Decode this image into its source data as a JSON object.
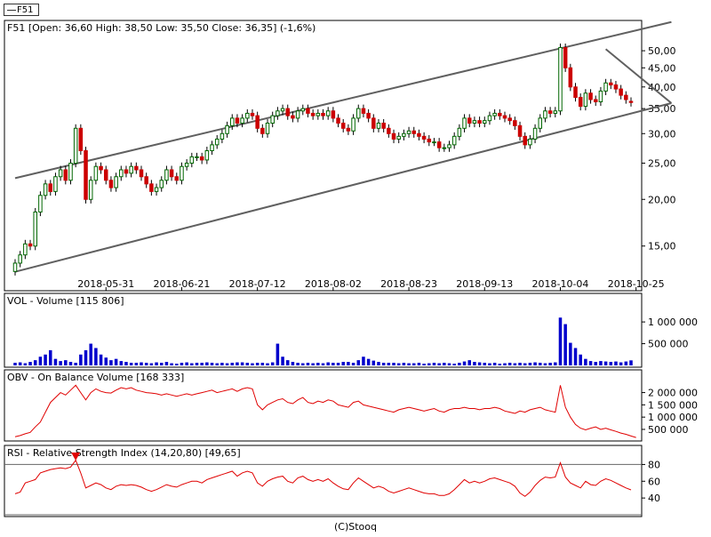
{
  "legend": {
    "label": "F51"
  },
  "credit": "(C)Stooq",
  "colors": {
    "up": "#ffffff",
    "down": "#cc0000",
    "volume": "#0000cc",
    "indicator": "#e00000",
    "channel": "#606060",
    "grid": "#000000"
  },
  "chart_data": [
    {
      "type": "candlestick",
      "title": "F51 [Open: 36,60  High: 38,50  Low: 35,50  Close: 36,35] (-1,6%)",
      "y_scale": "log",
      "ylim": [
        12.5,
        58
      ],
      "y_ticks": [
        {
          "value": 15,
          "label": "15,00"
        },
        {
          "value": 20,
          "label": "20,00"
        },
        {
          "value": 25,
          "label": "25,00"
        },
        {
          "value": 30,
          "label": "30,00"
        },
        {
          "value": 35,
          "label": "35,00"
        },
        {
          "value": 40,
          "label": "40,00"
        },
        {
          "value": 45,
          "label": "45,00"
        },
        {
          "value": 50,
          "label": "50,00"
        }
      ],
      "x_ticks": [
        "2018-05-31",
        "2018-06-21",
        "2018-07-12",
        "2018-08-02",
        "2018-08-23",
        "2018-09-13",
        "2018-10-04",
        "2018-10-25"
      ],
      "x_tick_index": [
        18,
        33,
        48,
        63,
        78,
        93,
        108,
        123
      ],
      "closes": [
        13.5,
        14.2,
        15.2,
        15.0,
        18.5,
        20.5,
        22.0,
        21.0,
        23.0,
        24.0,
        22.5,
        25.0,
        31.0,
        27.0,
        20.0,
        22.5,
        24.5,
        24.0,
        22.5,
        21.5,
        23.0,
        24.0,
        23.5,
        24.5,
        24.0,
        23.0,
        22.0,
        21.0,
        21.5,
        22.5,
        24.0,
        23.0,
        22.5,
        24.5,
        25.0,
        26.0,
        26.0,
        25.5,
        27.0,
        28.0,
        29.0,
        30.0,
        31.5,
        33.0,
        32.0,
        33.0,
        34.0,
        33.5,
        31.0,
        30.0,
        32.0,
        33.5,
        34.5,
        35.0,
        33.5,
        33.0,
        34.5,
        35.0,
        34.0,
        33.5,
        34.0,
        33.5,
        34.5,
        33.0,
        32.0,
        31.0,
        30.5,
        33.0,
        35.0,
        34.0,
        33.0,
        31.0,
        32.0,
        31.0,
        30.0,
        29.0,
        29.5,
        30.0,
        30.5,
        30.0,
        29.5,
        29.0,
        28.5,
        28.5,
        27.5,
        27.5,
        28.0,
        29.5,
        31.0,
        33.0,
        32.0,
        32.5,
        32.0,
        32.5,
        33.5,
        34.0,
        33.5,
        33.0,
        32.5,
        31.5,
        29.5,
        28.0,
        29.0,
        31.0,
        33.0,
        34.5,
        34.0,
        34.5,
        51.0,
        45.0,
        40.0,
        37.5,
        35.5,
        38.5,
        37.0,
        36.5,
        39.0,
        41.0,
        40.5,
        39.5,
        38.0,
        37.0,
        36.35
      ],
      "indicators": [
        {
          "name": "channel",
          "points": [
            [
              0,
              22.8
            ],
            [
              130,
              59.7
            ]
          ]
        },
        {
          "name": "channel",
          "points": [
            [
              0,
              12.8
            ],
            [
              130,
              36.2
            ]
          ]
        },
        {
          "name": "trend",
          "points": [
            [
              117,
              50.5
            ],
            [
              130,
              36.2
            ]
          ]
        }
      ]
    },
    {
      "type": "bar",
      "title": "VOL - Volume [115 806]",
      "ylim": [
        0,
        1350000
      ],
      "y_ticks": [
        {
          "value": 500000,
          "label": "500 000"
        },
        {
          "value": 1000000,
          "label": "1 000 000"
        }
      ],
      "values": [
        60000,
        70000,
        50000,
        80000,
        120000,
        200000,
        250000,
        350000,
        150000,
        100000,
        120000,
        80000,
        60000,
        250000,
        350000,
        500000,
        400000,
        250000,
        180000,
        120000,
        150000,
        100000,
        80000,
        60000,
        60000,
        70000,
        60000,
        50000,
        70000,
        60000,
        80000,
        50000,
        40000,
        60000,
        70000,
        50000,
        60000,
        60000,
        70000,
        60000,
        50000,
        60000,
        50000,
        60000,
        70000,
        70000,
        60000,
        50000,
        60000,
        60000,
        50000,
        70000,
        500000,
        200000,
        120000,
        80000,
        60000,
        50000,
        60000,
        50000,
        60000,
        50000,
        70000,
        60000,
        60000,
        80000,
        80000,
        60000,
        120000,
        200000,
        150000,
        110000,
        80000,
        60000,
        60000,
        60000,
        50000,
        60000,
        50000,
        50000,
        60000,
        40000,
        50000,
        60000,
        50000,
        60000,
        50000,
        40000,
        60000,
        90000,
        120000,
        80000,
        70000,
        60000,
        50000,
        60000,
        40000,
        50000,
        60000,
        50000,
        60000,
        50000,
        60000,
        70000,
        60000,
        50000,
        60000,
        70000,
        1100000,
        950000,
        520000,
        400000,
        250000,
        150000,
        100000,
        80000,
        100000,
        90000,
        80000,
        90000,
        70000,
        90000,
        116000
      ]
    },
    {
      "type": "line",
      "title": "OBV - On Balance Volume [168 333]",
      "ylim": [
        100000,
        2600000
      ],
      "y_ticks": [
        {
          "value": 500000,
          "label": "500 000"
        },
        {
          "value": 1000000,
          "label": "1 000 000"
        },
        {
          "value": 1500000,
          "label": "1 500 000"
        },
        {
          "value": 2000000,
          "label": "2 000 000"
        }
      ],
      "values": [
        200000,
        250000,
        320000,
        380000,
        600000,
        800000,
        1200000,
        1600000,
        1800000,
        2000000,
        1900000,
        2100000,
        2300000,
        2000000,
        1700000,
        2000000,
        2150000,
        2050000,
        2000000,
        1980000,
        2100000,
        2200000,
        2150000,
        2200000,
        2100000,
        2050000,
        2000000,
        1980000,
        1950000,
        1900000,
        1950000,
        1900000,
        1850000,
        1900000,
        1950000,
        1900000,
        1950000,
        2000000,
        2050000,
        2100000,
        2000000,
        2050000,
        2100000,
        2150000,
        2050000,
        2150000,
        2200000,
        2150000,
        1500000,
        1300000,
        1500000,
        1600000,
        1700000,
        1750000,
        1600000,
        1550000,
        1700000,
        1800000,
        1600000,
        1550000,
        1650000,
        1600000,
        1700000,
        1650000,
        1500000,
        1450000,
        1400000,
        1600000,
        1650000,
        1500000,
        1450000,
        1400000,
        1350000,
        1300000,
        1250000,
        1200000,
        1300000,
        1350000,
        1400000,
        1350000,
        1300000,
        1250000,
        1300000,
        1350000,
        1250000,
        1200000,
        1300000,
        1350000,
        1350000,
        1400000,
        1350000,
        1350000,
        1300000,
        1350000,
        1350000,
        1400000,
        1350000,
        1250000,
        1200000,
        1150000,
        1250000,
        1200000,
        1300000,
        1350000,
        1400000,
        1300000,
        1250000,
        1200000,
        2300000,
        1400000,
        1000000,
        700000,
        550000,
        480000,
        550000,
        600000,
        500000,
        550000,
        480000,
        420000,
        350000,
        300000,
        230000,
        170000
      ]
    },
    {
      "type": "line",
      "title": "RSI - Relative Strength Index (14,20,80) [49,65]",
      "ylim": [
        20,
        90
      ],
      "y_ticks": [
        {
          "value": 40,
          "label": "40"
        },
        {
          "value": 60,
          "label": "60"
        },
        {
          "value": 80,
          "label": "80"
        }
      ],
      "reference_lines": [
        20,
        80
      ],
      "values": [
        45,
        47,
        58,
        60,
        62,
        70,
        72,
        74,
        75,
        76,
        75,
        77,
        85,
        70,
        52,
        55,
        58,
        56,
        52,
        50,
        54,
        56,
        55,
        56,
        55,
        53,
        50,
        48,
        50,
        53,
        56,
        54,
        53,
        56,
        58,
        60,
        60,
        58,
        62,
        64,
        66,
        68,
        70,
        72,
        66,
        70,
        72,
        70,
        58,
        54,
        60,
        63,
        65,
        66,
        60,
        58,
        64,
        66,
        62,
        60,
        62,
        60,
        63,
        58,
        54,
        51,
        50,
        58,
        64,
        60,
        56,
        52,
        54,
        52,
        48,
        46,
        48,
        50,
        52,
        50,
        48,
        46,
        45,
        45,
        43,
        43,
        45,
        50,
        56,
        62,
        58,
        60,
        58,
        60,
        63,
        64,
        62,
        60,
        58,
        54,
        46,
        42,
        47,
        55,
        61,
        65,
        64,
        65,
        82,
        65,
        58,
        55,
        52,
        60,
        56,
        55,
        60,
        63,
        61,
        58,
        55,
        52,
        49.65
      ]
    }
  ]
}
